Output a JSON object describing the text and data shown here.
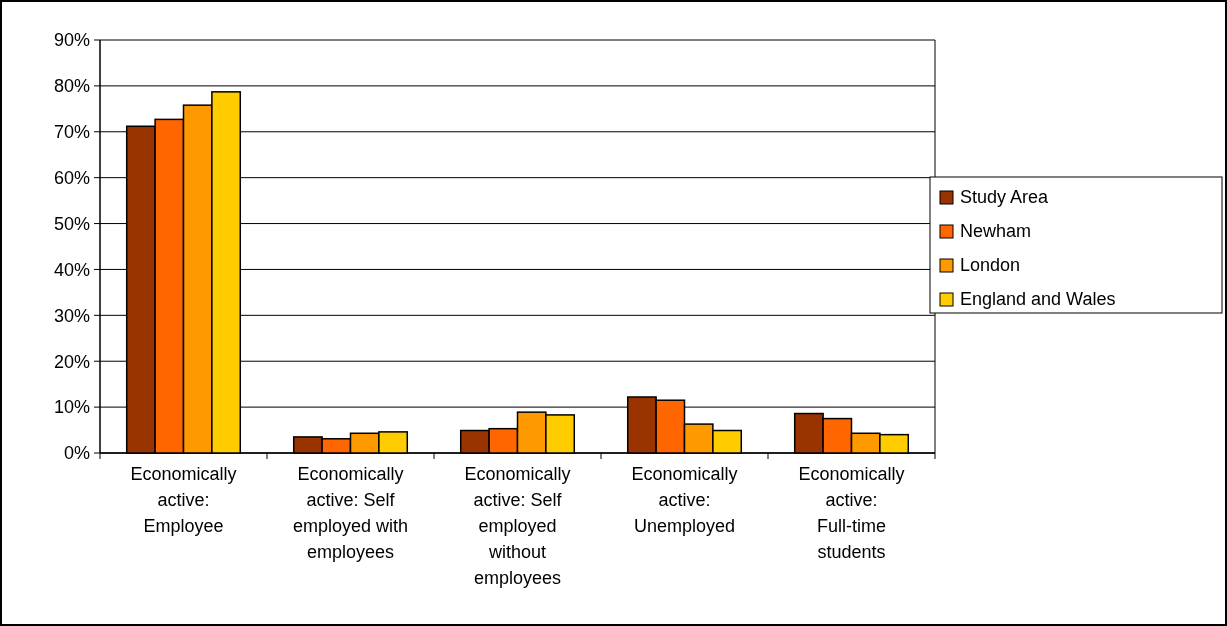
{
  "chart_data": {
    "type": "bar",
    "categories": [
      "Economically active: Employee",
      "Economically active: Self employed with employees",
      "Economically active: Self employed without employees",
      "Economically active: Unemployed",
      "Economically active: Full-time students"
    ],
    "series": [
      {
        "name": "Study Area",
        "color": "#993300",
        "values": [
          71.2,
          3.5,
          4.9,
          12.2,
          8.6
        ]
      },
      {
        "name": "Newham",
        "color": "#ff6600",
        "values": [
          72.7,
          3.1,
          5.3,
          11.5,
          7.5
        ]
      },
      {
        "name": "London",
        "color": "#ff9900",
        "values": [
          75.8,
          4.3,
          8.9,
          6.3,
          4.3
        ]
      },
      {
        "name": "England and Wales",
        "color": "#ffcc00",
        "values": [
          78.7,
          4.6,
          8.3,
          4.9,
          4.0
        ]
      }
    ],
    "ylim": [
      0,
      90
    ],
    "yticks": [
      {
        "value": 0,
        "label": "0%"
      },
      {
        "value": 10,
        "label": "10%"
      },
      {
        "value": 20,
        "label": "20%"
      },
      {
        "value": 30,
        "label": "30%"
      },
      {
        "value": 40,
        "label": "40%"
      },
      {
        "value": 50,
        "label": "50%"
      },
      {
        "value": 60,
        "label": "60%"
      },
      {
        "value": 70,
        "label": "70%"
      },
      {
        "value": 80,
        "label": "80%"
      },
      {
        "value": 90,
        "label": "90%"
      }
    ],
    "grid": "y",
    "legend": "right"
  }
}
